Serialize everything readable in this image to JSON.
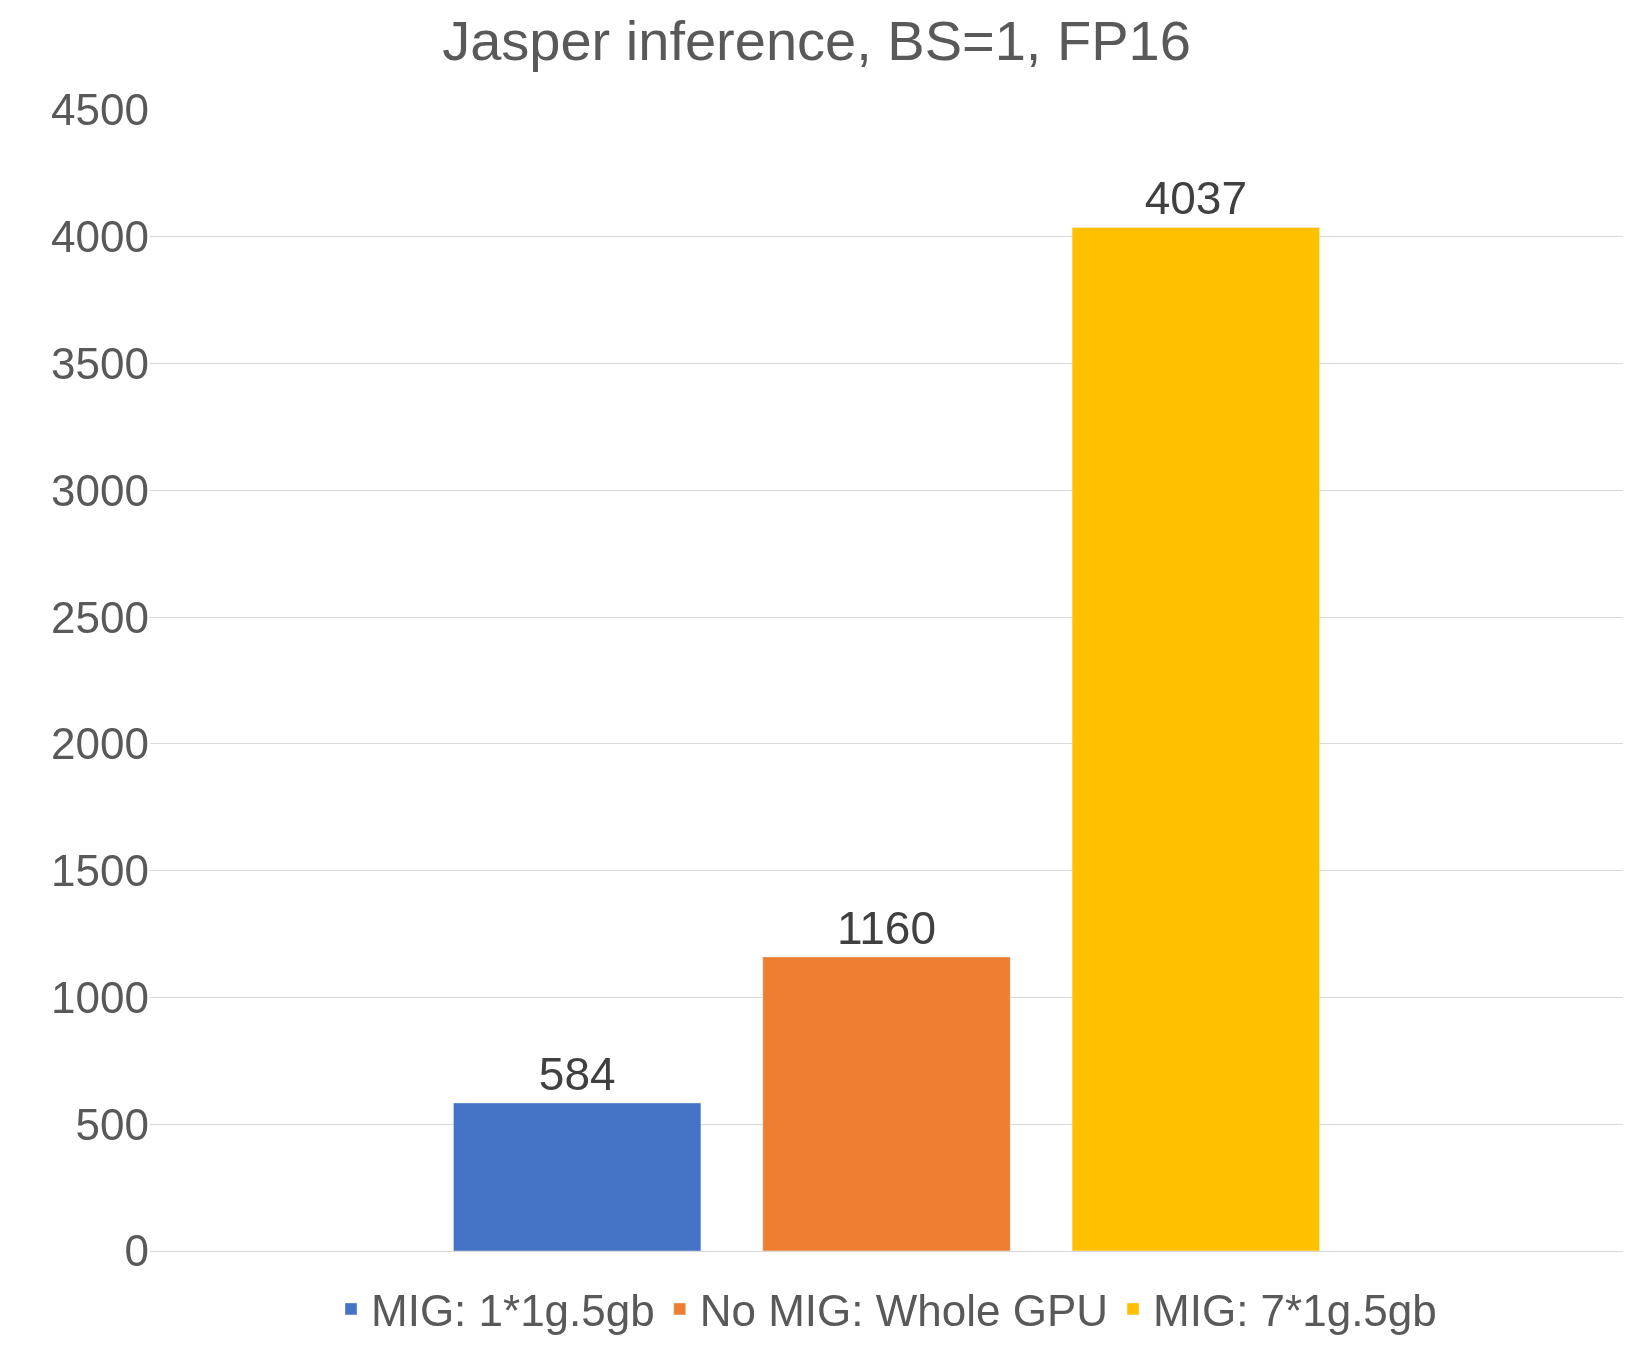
{
  "chart_data": {
    "type": "bar",
    "title": "Jasper inference, BS=1, FP16",
    "categories": [
      null
    ],
    "series": [
      {
        "name": "MIG: 1*1g.5gb",
        "color": "#4472c4",
        "values": [
          584
        ]
      },
      {
        "name": "No MIG: Whole GPU",
        "color": "#ed7d31",
        "values": [
          1160
        ]
      },
      {
        "name": "MIG: 7*1g.5gb",
        "color": "#ffc000",
        "values": [
          4037
        ]
      }
    ],
    "ylim": [
      0,
      4500
    ],
    "yticks": [
      0,
      500,
      1000,
      1500,
      2000,
      2500,
      3000,
      3500,
      4000,
      4500
    ],
    "grid": "y",
    "legend": "bottom",
    "data_labels": true
  }
}
